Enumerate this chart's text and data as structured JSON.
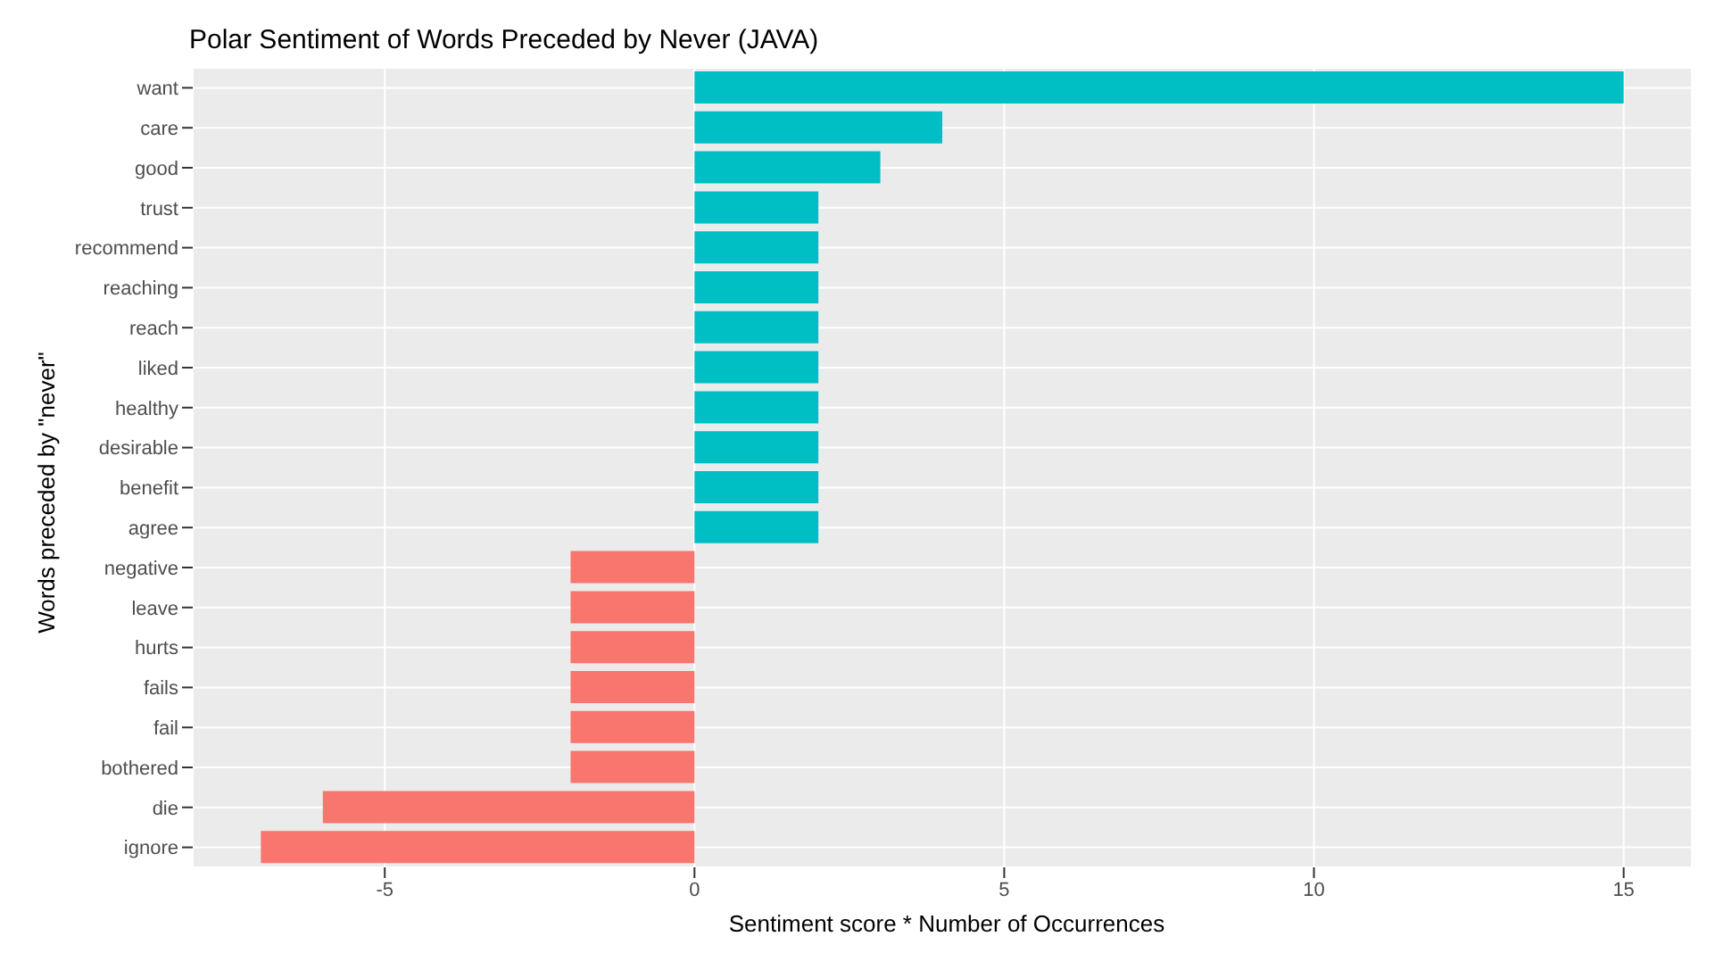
{
  "chart_data": {
    "type": "bar",
    "orientation": "horizontal",
    "title": "Polar Sentiment of Words Preceded by Never (JAVA)",
    "xlabel": "Sentiment score * Number of Occurrences",
    "ylabel": "Words preceded by \"never\"",
    "categories": [
      "want",
      "care",
      "good",
      "trust",
      "recommend",
      "reaching",
      "reach",
      "liked",
      "healthy",
      "desirable",
      "benefit",
      "agree",
      "negative",
      "leave",
      "hurts",
      "fails",
      "fail",
      "bothered",
      "die",
      "ignore"
    ],
    "values": [
      15,
      4,
      3,
      2,
      2,
      2,
      2,
      2,
      2,
      2,
      2,
      2,
      -2,
      -2,
      -2,
      -2,
      -2,
      -2,
      -6,
      -7
    ],
    "colors": [
      "#00bfc4",
      "#00bfc4",
      "#00bfc4",
      "#00bfc4",
      "#00bfc4",
      "#00bfc4",
      "#00bfc4",
      "#00bfc4",
      "#00bfc4",
      "#00bfc4",
      "#00bfc4",
      "#00bfc4",
      "#f8766d",
      "#f8766d",
      "#f8766d",
      "#f8766d",
      "#f8766d",
      "#f8766d",
      "#f8766d",
      "#f8766d"
    ],
    "xlim": [
      -8.1,
      16.1
    ],
    "xticks": [
      -5,
      0,
      5,
      10,
      15
    ],
    "grid": true
  }
}
